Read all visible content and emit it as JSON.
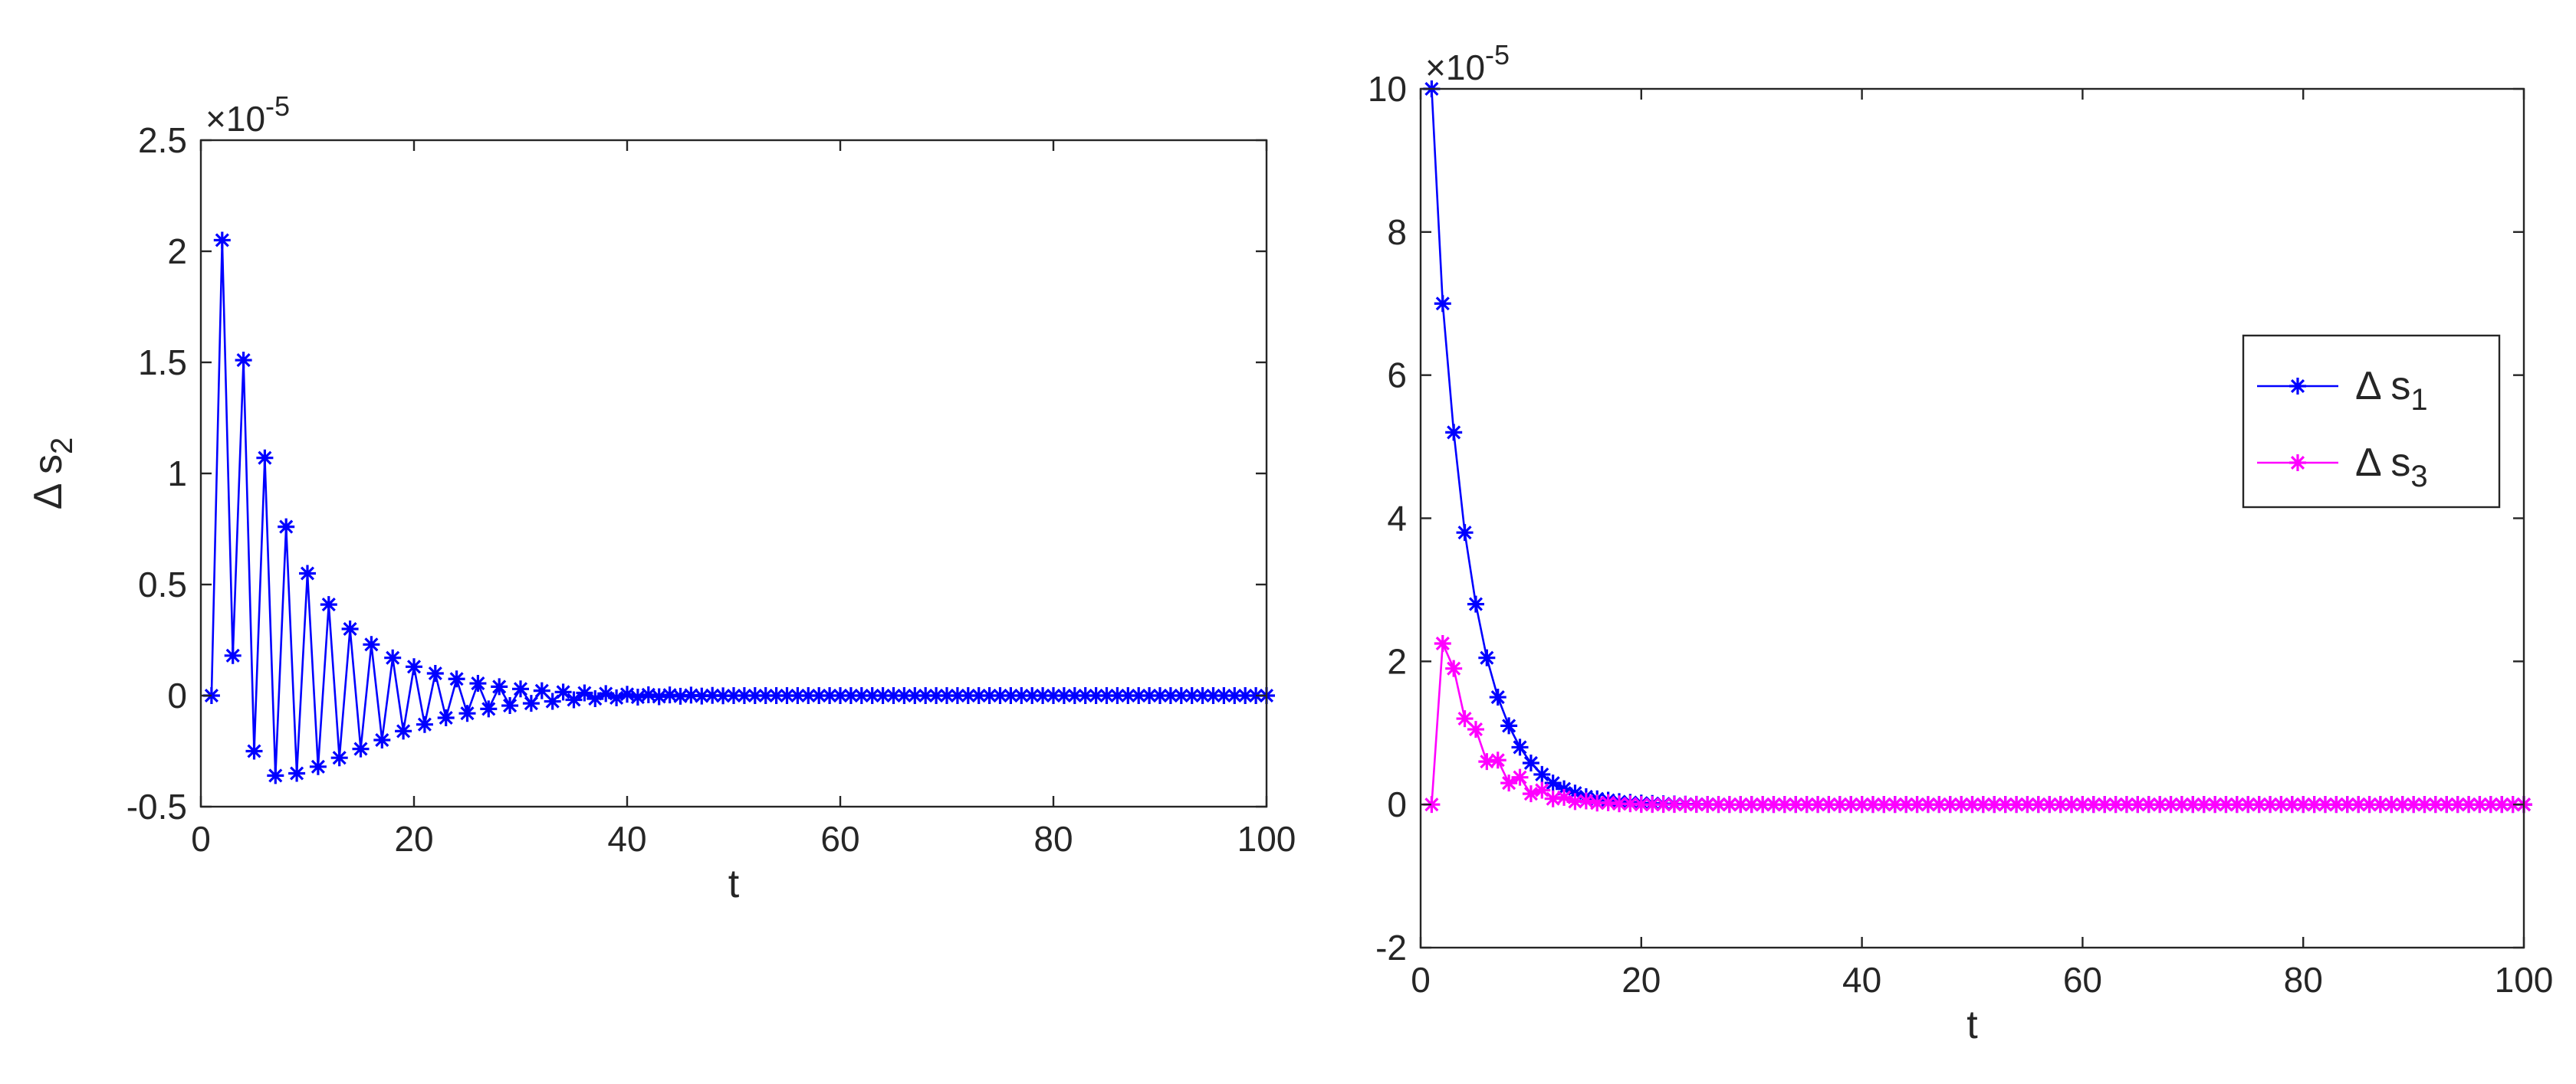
{
  "chart_data": [
    {
      "type": "line",
      "xlabel": "t",
      "ylabel_main": "Δ s",
      "ylabel_sub": "2",
      "exponent_label": "×10",
      "exponent_power": "-5",
      "xlim": [
        0,
        100
      ],
      "ylim": [
        -0.5,
        2.5
      ],
      "xticks": [
        0,
        20,
        40,
        60,
        80,
        100
      ],
      "xtick_labels": [
        "0",
        "20",
        "40",
        "60",
        "80",
        "100"
      ],
      "yticks": [
        -0.5,
        0,
        0.5,
        1,
        1.5,
        2,
        2.5
      ],
      "ytick_labels": [
        "-0.5",
        "0",
        "0.5",
        "1",
        "1.5",
        "2",
        "2.5"
      ],
      "grid": false,
      "colors": {
        "series_1": "#0000ff"
      },
      "series": [
        {
          "marker": "asterisk",
          "x": [
            1,
            2,
            3,
            4,
            5,
            6,
            7,
            8,
            9,
            10,
            11,
            12,
            13,
            14,
            15,
            16,
            17,
            18,
            19,
            20,
            21,
            22,
            23,
            24,
            25,
            26,
            27,
            28,
            29,
            30,
            31,
            32,
            33,
            34,
            35,
            36,
            37,
            38,
            39,
            40,
            41,
            42,
            43,
            44,
            45,
            46,
            47,
            48,
            49,
            50,
            51,
            52,
            53,
            54,
            55,
            56,
            57,
            58,
            59,
            60,
            61,
            62,
            63,
            64,
            65,
            66,
            67,
            68,
            69,
            70,
            71,
            72,
            73,
            74,
            75,
            76,
            77,
            78,
            79,
            80,
            81,
            82,
            83,
            84,
            85,
            86,
            87,
            88,
            89,
            90,
            91,
            92,
            93,
            94,
            95,
            96,
            97,
            98,
            99,
            100
          ],
          "y": [
            0,
            2.05,
            0.18,
            1.51,
            -0.25,
            1.07,
            -0.36,
            0.76,
            -0.35,
            0.55,
            -0.32,
            0.41,
            -0.28,
            0.3,
            -0.24,
            0.23,
            -0.2,
            0.17,
            -0.16,
            0.13,
            -0.13,
            0.1,
            -0.1,
            0.075,
            -0.08,
            0.055,
            -0.06,
            0.04,
            -0.045,
            0.03,
            -0.035,
            0.022,
            -0.026,
            0.016,
            -0.019,
            0.012,
            -0.014,
            0.009,
            -0.01,
            0.006,
            -0.007,
            0.004,
            -0.005,
            0.003,
            -0.003,
            0.002,
            -0.002,
            0.001,
            -0.001,
            0,
            0,
            0,
            0,
            0,
            0,
            0,
            0,
            0,
            0,
            0,
            0,
            0,
            0,
            0,
            0,
            0,
            0,
            0,
            0,
            0,
            0,
            0,
            0,
            0,
            0,
            0,
            0,
            0,
            0,
            0,
            0,
            0,
            0,
            0,
            0,
            0,
            0,
            0,
            0,
            0,
            0,
            0,
            0,
            0,
            0,
            0,
            0,
            0,
            0,
            0
          ]
        }
      ]
    },
    {
      "type": "line",
      "xlabel": "t",
      "exponent_label": "×10",
      "exponent_power": "-5",
      "xlim": [
        0,
        100
      ],
      "ylim": [
        -2,
        10
      ],
      "xticks": [
        0,
        20,
        40,
        60,
        80,
        100
      ],
      "xtick_labels": [
        "0",
        "20",
        "40",
        "60",
        "80",
        "100"
      ],
      "yticks": [
        -2,
        0,
        2,
        4,
        6,
        8,
        10
      ],
      "ytick_labels": [
        "-2",
        "0",
        "2",
        "4",
        "6",
        "8",
        "10"
      ],
      "grid": false,
      "legend_position": "right",
      "colors": {
        "series_1": "#0000ff",
        "series_2": "#ff00ff"
      },
      "series": [
        {
          "name": "Δ s",
          "name_sub": "1",
          "marker": "asterisk",
          "x": [
            1,
            2,
            3,
            4,
            5,
            6,
            7,
            8,
            9,
            10,
            11,
            12,
            13,
            14,
            15,
            16,
            17,
            18,
            19,
            20,
            21,
            22,
            23,
            24,
            25,
            26,
            27,
            28,
            29,
            30,
            31,
            32,
            33,
            34,
            35,
            36,
            37,
            38,
            39,
            40,
            41,
            42,
            43,
            44,
            45,
            46,
            47,
            48,
            49,
            50,
            51,
            52,
            53,
            54,
            55,
            56,
            57,
            58,
            59,
            60,
            61,
            62,
            63,
            64,
            65,
            66,
            67,
            68,
            69,
            70,
            71,
            72,
            73,
            74,
            75,
            76,
            77,
            78,
            79,
            80,
            81,
            82,
            83,
            84,
            85,
            86,
            87,
            88,
            89,
            90,
            91,
            92,
            93,
            94,
            95,
            96,
            97,
            98,
            99,
            100
          ],
          "y": [
            10,
            7.0,
            5.2,
            3.8,
            2.8,
            2.05,
            1.5,
            1.1,
            0.8,
            0.58,
            0.42,
            0.3,
            0.22,
            0.16,
            0.11,
            0.08,
            0.06,
            0.04,
            0.03,
            0.02,
            0.015,
            0.01,
            0.007,
            0.005,
            0.003,
            0.002,
            0.001,
            0,
            0,
            0,
            0,
            0,
            0,
            0,
            0,
            0,
            0,
            0,
            0,
            0,
            0,
            0,
            0,
            0,
            0,
            0,
            0,
            0,
            0,
            0,
            0,
            0,
            0,
            0,
            0,
            0,
            0,
            0,
            0,
            0,
            0,
            0,
            0,
            0,
            0,
            0,
            0,
            0,
            0,
            0,
            0,
            0,
            0,
            0,
            0,
            0,
            0,
            0,
            0,
            0,
            0,
            0,
            0,
            0,
            0,
            0,
            0,
            0,
            0,
            0,
            0,
            0,
            0,
            0,
            0,
            0,
            0,
            0,
            0,
            0
          ]
        },
        {
          "name": "Δ s",
          "name_sub": "3",
          "marker": "asterisk",
          "x": [
            1,
            2,
            3,
            4,
            5,
            6,
            7,
            8,
            9,
            10,
            11,
            12,
            13,
            14,
            15,
            16,
            17,
            18,
            19,
            20,
            21,
            22,
            23,
            24,
            25,
            26,
            27,
            28,
            29,
            30,
            31,
            32,
            33,
            34,
            35,
            36,
            37,
            38,
            39,
            40,
            41,
            42,
            43,
            44,
            45,
            46,
            47,
            48,
            49,
            50,
            51,
            52,
            53,
            54,
            55,
            56,
            57,
            58,
            59,
            60,
            61,
            62,
            63,
            64,
            65,
            66,
            67,
            68,
            69,
            70,
            71,
            72,
            73,
            74,
            75,
            76,
            77,
            78,
            79,
            80,
            81,
            82,
            83,
            84,
            85,
            86,
            87,
            88,
            89,
            90,
            91,
            92,
            93,
            94,
            95,
            96,
            97,
            98,
            99,
            100
          ],
          "y": [
            0,
            2.25,
            1.9,
            1.2,
            1.05,
            0.6,
            0.62,
            0.3,
            0.38,
            0.15,
            0.2,
            0.08,
            0.1,
            0.04,
            0.05,
            0.02,
            0.025,
            0.01,
            0.01,
            0,
            0,
            0,
            0,
            0,
            0,
            0,
            0,
            0,
            0,
            0,
            0,
            0,
            0,
            0,
            0,
            0,
            0,
            0,
            0,
            0,
            0,
            0,
            0,
            0,
            0,
            0,
            0,
            0,
            0,
            0,
            0,
            0,
            0,
            0,
            0,
            0,
            0,
            0,
            0,
            0,
            0,
            0,
            0,
            0,
            0,
            0,
            0,
            0,
            0,
            0,
            0,
            0,
            0,
            0,
            0,
            0,
            0,
            0,
            0,
            0,
            0,
            0,
            0,
            0,
            0,
            0,
            0,
            0,
            0,
            0,
            0,
            0,
            0,
            0,
            0,
            0,
            0,
            0,
            0,
            0
          ]
        }
      ]
    }
  ]
}
